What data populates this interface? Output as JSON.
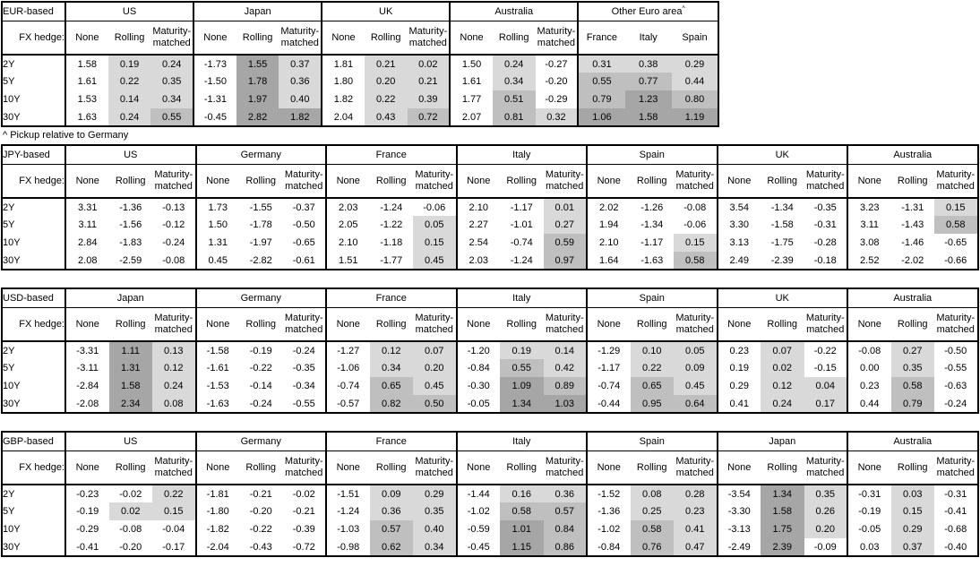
{
  "footnote": "^ Pickup relative to Germany",
  "labels": {
    "fx_hedge": "FX hedge:",
    "tenors": [
      "2Y",
      "5Y",
      "10Y",
      "30Y"
    ],
    "hedge_types": [
      "None",
      "Rolling",
      "Maturity-matched"
    ]
  },
  "shading": {
    "colors": {
      "none": "#ffffff",
      "light": "#d9d9d9",
      "medium": "#bfbfbf",
      "dark": "#a6a6a6"
    },
    "rule": "hedged/pickup columns only: value<0 white, 0 to 0.5 light, 0.5 to 1.0 medium, >=1.0 dark"
  },
  "tables": [
    {
      "base": "EUR-based",
      "panels": [
        {
          "title": "US",
          "shaded_columns": [
            1,
            2
          ],
          "rows": [
            [
              "1.58",
              "0.19",
              "0.24"
            ],
            [
              "1.61",
              "0.22",
              "0.35"
            ],
            [
              "1.53",
              "0.14",
              "0.34"
            ],
            [
              "1.63",
              "0.24",
              "0.55"
            ]
          ]
        },
        {
          "title": "Japan",
          "shaded_columns": [
            1,
            2
          ],
          "rows": [
            [
              "-1.73",
              "1.55",
              "0.37"
            ],
            [
              "-1.50",
              "1.78",
              "0.36"
            ],
            [
              "-1.31",
              "1.97",
              "0.40"
            ],
            [
              "-0.45",
              "2.82",
              "1.82"
            ]
          ]
        },
        {
          "title": "UK",
          "shaded_columns": [
            1,
            2
          ],
          "rows": [
            [
              "1.81",
              "0.21",
              "0.02"
            ],
            [
              "1.80",
              "0.20",
              "0.21"
            ],
            [
              "1.82",
              "0.22",
              "0.39"
            ],
            [
              "2.04",
              "0.43",
              "0.72"
            ]
          ]
        },
        {
          "title": "Australia",
          "shaded_columns": [
            1,
            2
          ],
          "rows": [
            [
              "1.50",
              "0.24",
              "-0.27"
            ],
            [
              "1.61",
              "0.34",
              "-0.20"
            ],
            [
              "1.77",
              "0.51",
              "-0.29"
            ],
            [
              "2.07",
              "0.81",
              "0.32"
            ]
          ]
        },
        {
          "title": "Other Euro area",
          "superscript": "^",
          "wide": true,
          "columns": [
            "France",
            "Italy",
            "Spain"
          ],
          "shaded_columns": [
            0,
            1,
            2
          ],
          "rows": [
            [
              "0.31",
              "0.38",
              "0.29"
            ],
            [
              "0.55",
              "0.77",
              "0.44"
            ],
            [
              "0.79",
              "1.23",
              "0.80"
            ],
            [
              "1.06",
              "1.58",
              "1.19"
            ]
          ]
        }
      ]
    },
    {
      "base": "JPY-based",
      "panels": [
        {
          "title": "US",
          "shaded_columns": [
            1,
            2
          ],
          "rows": [
            [
              "3.31",
              "-1.36",
              "-0.13"
            ],
            [
              "3.11",
              "-1.56",
              "-0.12"
            ],
            [
              "2.84",
              "-1.83",
              "-0.24"
            ],
            [
              "2.08",
              "-2.59",
              "-0.08"
            ]
          ]
        },
        {
          "title": "Germany",
          "shaded_columns": [
            1,
            2
          ],
          "rows": [
            [
              "1.73",
              "-1.55",
              "-0.37"
            ],
            [
              "1.50",
              "-1.78",
              "-0.50"
            ],
            [
              "1.31",
              "-1.97",
              "-0.65"
            ],
            [
              "0.45",
              "-2.82",
              "-0.61"
            ]
          ]
        },
        {
          "title": "France",
          "shaded_columns": [
            1,
            2
          ],
          "rows": [
            [
              "2.03",
              "-1.24",
              "-0.06"
            ],
            [
              "2.05",
              "-1.22",
              "0.05"
            ],
            [
              "2.10",
              "-1.18",
              "0.15"
            ],
            [
              "1.51",
              "-1.77",
              "0.45"
            ]
          ]
        },
        {
          "title": "Italy",
          "shaded_columns": [
            1,
            2
          ],
          "rows": [
            [
              "2.10",
              "-1.17",
              "0.01"
            ],
            [
              "2.27",
              "-1.01",
              "0.27"
            ],
            [
              "2.54",
              "-0.74",
              "0.59"
            ],
            [
              "2.03",
              "-1.24",
              "0.97"
            ]
          ]
        },
        {
          "title": "Spain",
          "shaded_columns": [
            1,
            2
          ],
          "rows": [
            [
              "2.02",
              "-1.26",
              "-0.08"
            ],
            [
              "1.94",
              "-1.34",
              "-0.06"
            ],
            [
              "2.10",
              "-1.17",
              "0.15"
            ],
            [
              "1.64",
              "-1.63",
              "0.58"
            ]
          ]
        },
        {
          "title": "UK",
          "shaded_columns": [
            1,
            2
          ],
          "rows": [
            [
              "3.54",
              "-1.34",
              "-0.35"
            ],
            [
              "3.30",
              "-1.58",
              "-0.31"
            ],
            [
              "3.13",
              "-1.75",
              "-0.28"
            ],
            [
              "2.49",
              "-2.39",
              "-0.18"
            ]
          ]
        },
        {
          "title": "Australia",
          "shaded_columns": [
            1,
            2
          ],
          "rows": [
            [
              "3.23",
              "-1.31",
              "0.15"
            ],
            [
              "3.11",
              "-1.43",
              "0.58"
            ],
            [
              "3.08",
              "-1.46",
              "-0.65"
            ],
            [
              "2.52",
              "-2.02",
              "-0.66"
            ]
          ]
        }
      ]
    },
    {
      "base": "USD-based",
      "panels": [
        {
          "title": "Japan",
          "shaded_columns": [
            1,
            2
          ],
          "rows": [
            [
              "-3.31",
              "1.11",
              "0.13"
            ],
            [
              "-3.11",
              "1.31",
              "0.12"
            ],
            [
              "-2.84",
              "1.58",
              "0.24"
            ],
            [
              "-2.08",
              "2.34",
              "0.08"
            ]
          ]
        },
        {
          "title": "Germany",
          "shaded_columns": [
            1,
            2
          ],
          "rows": [
            [
              "-1.58",
              "-0.19",
              "-0.24"
            ],
            [
              "-1.61",
              "-0.22",
              "-0.35"
            ],
            [
              "-1.53",
              "-0.14",
              "-0.34"
            ],
            [
              "-1.63",
              "-0.24",
              "-0.55"
            ]
          ]
        },
        {
          "title": "France",
          "shaded_columns": [
            1,
            2
          ],
          "rows": [
            [
              "-1.27",
              "0.12",
              "0.07"
            ],
            [
              "-1.06",
              "0.34",
              "0.20"
            ],
            [
              "-0.74",
              "0.65",
              "0.45"
            ],
            [
              "-0.57",
              "0.82",
              "0.50"
            ]
          ]
        },
        {
          "title": "Italy",
          "shaded_columns": [
            1,
            2
          ],
          "rows": [
            [
              "-1.20",
              "0.19",
              "0.14"
            ],
            [
              "-0.84",
              "0.55",
              "0.42"
            ],
            [
              "-0.30",
              "1.09",
              "0.89"
            ],
            [
              "-0.05",
              "1.34",
              "1.03"
            ]
          ]
        },
        {
          "title": "Spain",
          "shaded_columns": [
            1,
            2
          ],
          "rows": [
            [
              "-1.29",
              "0.10",
              "0.05"
            ],
            [
              "-1.17",
              "0.22",
              "0.09"
            ],
            [
              "-0.74",
              "0.65",
              "0.45"
            ],
            [
              "-0.44",
              "0.95",
              "0.64"
            ]
          ]
        },
        {
          "title": "UK",
          "shaded_columns": [
            1,
            2
          ],
          "rows": [
            [
              "0.23",
              "0.07",
              "-0.22"
            ],
            [
              "0.19",
              "0.02",
              "-0.15"
            ],
            [
              "0.29",
              "0.12",
              "0.04"
            ],
            [
              "0.41",
              "0.24",
              "0.17"
            ]
          ]
        },
        {
          "title": "Australia",
          "shaded_columns": [
            1,
            2
          ],
          "rows": [
            [
              "-0.08",
              "0.27",
              "-0.50"
            ],
            [
              "0.00",
              "0.35",
              "-0.55"
            ],
            [
              "0.23",
              "0.58",
              "-0.63"
            ],
            [
              "0.44",
              "0.79",
              "-0.24"
            ]
          ]
        }
      ]
    },
    {
      "base": "GBP-based",
      "panels": [
        {
          "title": "US",
          "shaded_columns": [
            1,
            2
          ],
          "rows": [
            [
              "-0.23",
              "-0.02",
              "0.22"
            ],
            [
              "-0.19",
              "0.02",
              "0.15"
            ],
            [
              "-0.29",
              "-0.08",
              "-0.04"
            ],
            [
              "-0.41",
              "-0.20",
              "-0.17"
            ]
          ]
        },
        {
          "title": "Germany",
          "shaded_columns": [
            1,
            2
          ],
          "rows": [
            [
              "-1.81",
              "-0.21",
              "-0.02"
            ],
            [
              "-1.80",
              "-0.20",
              "-0.21"
            ],
            [
              "-1.82",
              "-0.22",
              "-0.39"
            ],
            [
              "-2.04",
              "-0.43",
              "-0.72"
            ]
          ]
        },
        {
          "title": "France",
          "shaded_columns": [
            1,
            2
          ],
          "rows": [
            [
              "-1.51",
              "0.09",
              "0.29"
            ],
            [
              "-1.24",
              "0.36",
              "0.35"
            ],
            [
              "-1.03",
              "0.57",
              "0.40"
            ],
            [
              "-0.98",
              "0.62",
              "0.34"
            ]
          ]
        },
        {
          "title": "Italy",
          "shaded_columns": [
            1,
            2
          ],
          "rows": [
            [
              "-1.44",
              "0.16",
              "0.36"
            ],
            [
              "-1.02",
              "0.58",
              "0.57"
            ],
            [
              "-0.59",
              "1.01",
              "0.84"
            ],
            [
              "-0.45",
              "1.15",
              "0.86"
            ]
          ]
        },
        {
          "title": "Spain",
          "shaded_columns": [
            1,
            2
          ],
          "rows": [
            [
              "-1.52",
              "0.08",
              "0.28"
            ],
            [
              "-1.36",
              "0.25",
              "0.23"
            ],
            [
              "-1.02",
              "0.58",
              "0.41"
            ],
            [
              "-0.84",
              "0.76",
              "0.47"
            ]
          ]
        },
        {
          "title": "Japan",
          "shaded_columns": [
            1,
            2
          ],
          "rows": [
            [
              "-3.54",
              "1.34",
              "0.35"
            ],
            [
              "-3.30",
              "1.58",
              "0.26"
            ],
            [
              "-3.13",
              "1.75",
              "0.20"
            ],
            [
              "-2.49",
              "2.39",
              "-0.09"
            ]
          ]
        },
        {
          "title": "Australia",
          "shaded_columns": [
            1,
            2
          ],
          "rows": [
            [
              "-0.31",
              "0.03",
              "-0.31"
            ],
            [
              "-0.19",
              "0.15",
              "-0.41"
            ],
            [
              "-0.05",
              "0.29",
              "-0.68"
            ],
            [
              "0.03",
              "0.37",
              "-0.40"
            ]
          ]
        }
      ]
    }
  ]
}
